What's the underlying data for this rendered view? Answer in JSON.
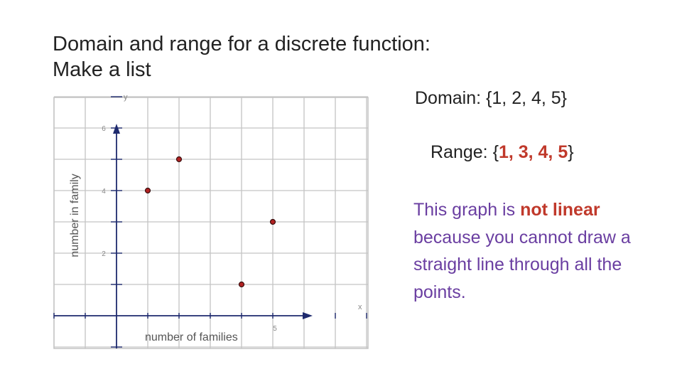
{
  "slide": {
    "title_line1": "Domain and range for a discrete function:",
    "title_line2": "Make a list",
    "domain": {
      "label": "Domain:",
      "values": "{1, 2, 4, 5}"
    },
    "range": {
      "label": "Range:",
      "open": "{",
      "values": "1, 3, 4, 5",
      "close": "}"
    },
    "explanation": {
      "part1": "This graph is ",
      "emphasis": "not linear",
      "part2": " because you cannot draw a straight line through all the points."
    }
  },
  "chart_data": {
    "type": "scatter",
    "xlabel": "number of families",
    "ylabel": "number in family",
    "x_axis_name": "x",
    "y_axis_name": "y",
    "x_ticks": [
      {
        "value": 5,
        "label": "5"
      }
    ],
    "y_ticks": [
      {
        "value": 2,
        "label": "2"
      },
      {
        "value": 4,
        "label": "4"
      },
      {
        "value": 6,
        "label": "6"
      }
    ],
    "xlim": [
      -2,
      8
    ],
    "ylim": [
      -1,
      7
    ],
    "grid": true,
    "points": [
      {
        "x": 1,
        "y": 4
      },
      {
        "x": 2,
        "y": 5
      },
      {
        "x": 4,
        "y": 1
      },
      {
        "x": 5,
        "y": 3
      }
    ],
    "colors": {
      "grid": "#c4c4c4",
      "axis": "#1e2a6e",
      "point_fill": "#b22222",
      "point_stroke": "#3a1010",
      "tick_text": "#888888"
    }
  }
}
